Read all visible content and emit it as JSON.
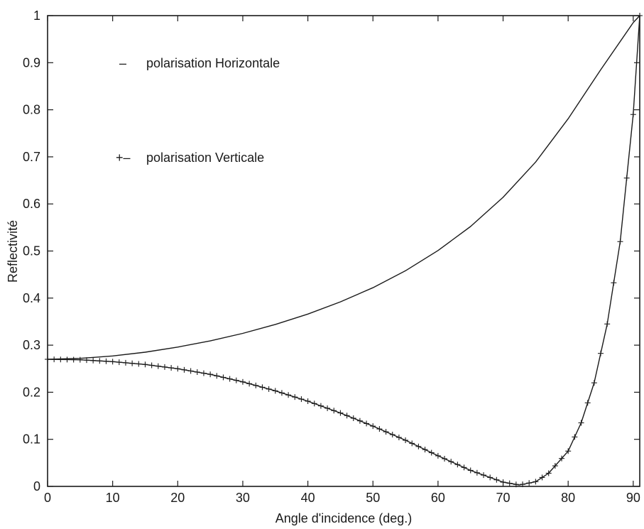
{
  "chart_data": {
    "type": "line",
    "title": "",
    "xlabel": "Angle d'incidence (deg.)",
    "ylabel": "Reflectivité",
    "xlim": [
      0,
      91
    ],
    "ylim": [
      0,
      1
    ],
    "xticks": [
      "0",
      "10",
      "20",
      "30",
      "40",
      "50",
      "60",
      "70",
      "80",
      "90"
    ],
    "yticks": [
      "0",
      "0.1",
      "0.2",
      "0.3",
      "0.4",
      "0.5",
      "0.6",
      "0.7",
      "0.8",
      "0.9",
      "1"
    ],
    "grid": false,
    "legend_position": "top-left",
    "series": [
      {
        "name": "polarisation Horizontale",
        "legend_symbol": "–",
        "marker": "none",
        "x": [
          0,
          5,
          10,
          15,
          20,
          25,
          30,
          35,
          40,
          45,
          50,
          55,
          60,
          65,
          70,
          75,
          80,
          85,
          90,
          91
        ],
        "y": [
          0.27,
          0.272,
          0.277,
          0.285,
          0.296,
          0.309,
          0.325,
          0.344,
          0.366,
          0.392,
          0.422,
          0.458,
          0.501,
          0.552,
          0.614,
          0.689,
          0.781,
          0.885,
          0.985,
          1.0
        ]
      },
      {
        "name": "polarisation Verticale",
        "legend_symbol": "+–",
        "marker": "+",
        "x": [
          0,
          5,
          10,
          15,
          20,
          25,
          30,
          35,
          40,
          45,
          50,
          55,
          60,
          65,
          70,
          72.5,
          75,
          77,
          80,
          82,
          84,
          86,
          88,
          90,
          91
        ],
        "y": [
          0.27,
          0.269,
          0.265,
          0.259,
          0.25,
          0.238,
          0.222,
          0.203,
          0.181,
          0.156,
          0.128,
          0.098,
          0.065,
          0.034,
          0.009,
          0.003,
          0.01,
          0.028,
          0.075,
          0.135,
          0.22,
          0.345,
          0.52,
          0.79,
          1.0
        ]
      }
    ]
  }
}
